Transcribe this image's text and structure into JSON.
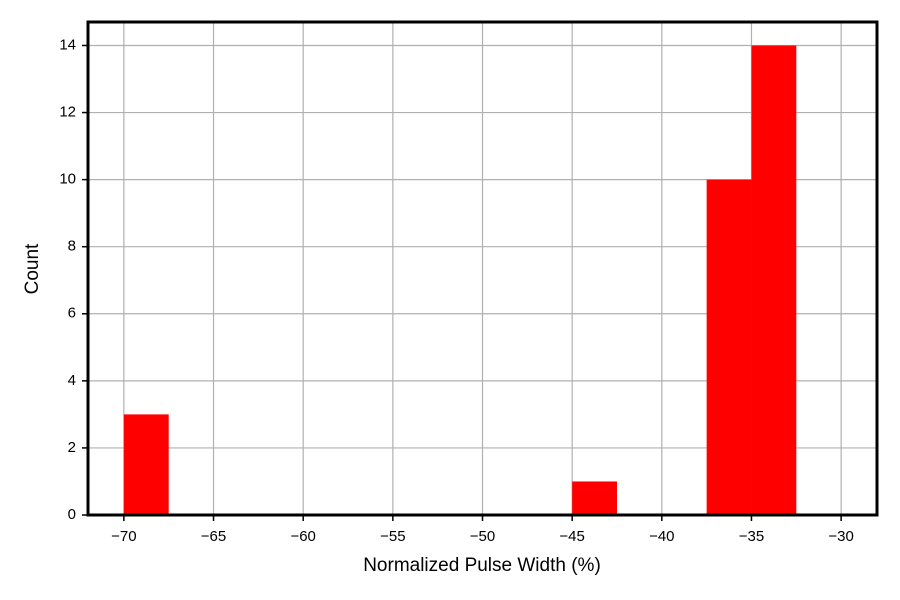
{
  "chart_data": {
    "type": "histogram",
    "x_label": "Normalized Pulse Width (%)",
    "y_label": "Count",
    "bins": [
      -70,
      -67.5,
      -65,
      -62.5,
      -60,
      -57.5,
      -55,
      -52.5,
      -50,
      -47.5,
      -45,
      -42.5,
      -40,
      -37.5,
      -35,
      -32.5
    ],
    "values": [
      3,
      0,
      0,
      0,
      0,
      0,
      0,
      0,
      0,
      0,
      1,
      0,
      0,
      10,
      14
    ],
    "color": "#ff0000",
    "xlim": [
      -72,
      -28
    ],
    "ylim": [
      0,
      14.7
    ],
    "xticks": [
      {
        "value": -70,
        "label": "−70"
      },
      {
        "value": -65,
        "label": "−65"
      },
      {
        "value": -60,
        "label": "−60"
      },
      {
        "value": -55,
        "label": "−55"
      },
      {
        "value": -50,
        "label": "−50"
      },
      {
        "value": -45,
        "label": "−45"
      },
      {
        "value": -40,
        "label": "−40"
      },
      {
        "value": -35,
        "label": "−35"
      },
      {
        "value": -30,
        "label": "−30"
      }
    ],
    "yticks": [
      0,
      2,
      4,
      6,
      8,
      10,
      12,
      14
    ],
    "grid": true
  }
}
